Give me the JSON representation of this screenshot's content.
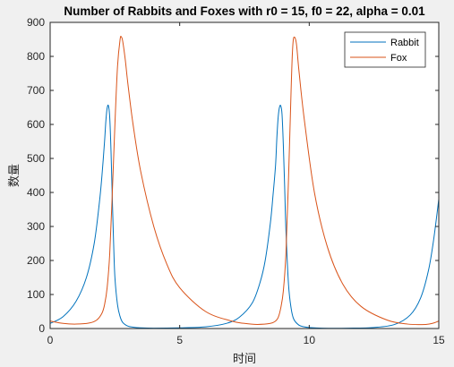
{
  "chart_data": {
    "type": "line",
    "title": "Number of Rabbits and Foxes with r0 = 15, f0 = 22, alpha = 0.01",
    "xlabel": "时间",
    "ylabel": "数量",
    "xlim": [
      0,
      15
    ],
    "ylim": [
      0,
      900
    ],
    "xticks": [
      0,
      5,
      10,
      15
    ],
    "yticks": [
      0,
      100,
      200,
      300,
      400,
      500,
      600,
      700,
      800,
      900
    ],
    "grid": false,
    "legend_position": "top-right",
    "series": [
      {
        "name": "Rabbit",
        "color": "#0072bd",
        "x": [
          0,
          0.5,
          1.0,
          1.4,
          1.7,
          1.9,
          2.0,
          2.1,
          2.15,
          2.2,
          2.25,
          2.3,
          2.35,
          2.4,
          2.45,
          2.5,
          2.6,
          2.7,
          2.8,
          3.0,
          3.2,
          3.5,
          4.0,
          5.0,
          6.0,
          6.8,
          7.3,
          7.8,
          8.1,
          8.3,
          8.5,
          8.6,
          8.7,
          8.75,
          8.8,
          8.85,
          8.9,
          8.95,
          9.0,
          9.05,
          9.1,
          9.2,
          9.3,
          9.4,
          9.6,
          9.8,
          10.0,
          10.5,
          11.5,
          12.5,
          13.3,
          13.9,
          14.3,
          14.6,
          14.8,
          15.0
        ],
        "y": [
          15,
          35,
          80,
          150,
          250,
          370,
          450,
          550,
          610,
          648,
          655,
          620,
          520,
          380,
          250,
          150,
          70,
          35,
          18,
          7,
          4,
          2,
          1,
          2,
          5,
          15,
          33,
          75,
          135,
          200,
          310,
          390,
          480,
          560,
          620,
          650,
          655,
          630,
          540,
          420,
          290,
          130,
          60,
          28,
          10,
          5,
          3,
          1,
          1,
          3,
          12,
          40,
          90,
          170,
          260,
          380
        ]
      },
      {
        "name": "Fox",
        "color": "#d95319",
        "x": [
          0,
          0.5,
          1.0,
          1.5,
          1.8,
          2.0,
          2.1,
          2.2,
          2.3,
          2.4,
          2.5,
          2.6,
          2.7,
          2.75,
          2.8,
          2.9,
          3.0,
          3.2,
          3.5,
          4.0,
          4.5,
          5.0,
          6.0,
          7.0,
          7.5,
          8.0,
          8.5,
          8.7,
          8.8,
          8.9,
          9.0,
          9.1,
          9.2,
          9.3,
          9.35,
          9.4,
          9.5,
          9.6,
          9.8,
          10.2,
          10.7,
          11.3,
          12.0,
          13.0,
          13.8,
          14.5,
          14.8,
          15.0
        ],
        "y": [
          22,
          15,
          13,
          16,
          25,
          45,
          70,
          120,
          220,
          400,
          600,
          770,
          850,
          857,
          845,
          790,
          720,
          600,
          460,
          300,
          190,
          120,
          50,
          22,
          15,
          12,
          15,
          22,
          32,
          60,
          110,
          220,
          440,
          700,
          810,
          855,
          840,
          760,
          620,
          400,
          240,
          130,
          65,
          25,
          13,
          12,
          16,
          22
        ]
      }
    ]
  }
}
